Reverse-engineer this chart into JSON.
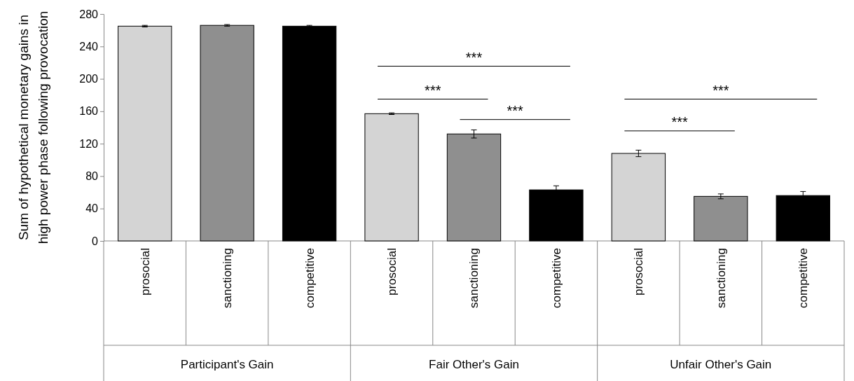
{
  "chart_data": {
    "type": "bar",
    "ylabel": "Sum  of hypothetical monetary  gains in high power phase following provocation",
    "categories": [
      "prosocial",
      "sanctioning",
      "competitive",
      "prosocial",
      "sanctioning",
      "competitive",
      "prosocial",
      "sanctioning",
      "competitive"
    ],
    "values": [
      265,
      266,
      265,
      157,
      132,
      63,
      108,
      55,
      56
    ],
    "colors": [
      "#d4d4d4",
      "#8f8f8f",
      "#000000",
      "#d4d4d4",
      "#8f8f8f",
      "#000000",
      "#d4d4d4",
      "#8f8f8f",
      "#000000"
    ],
    "errors": [
      1,
      1,
      1,
      1,
      5,
      5,
      4,
      3,
      5
    ],
    "ylim": [
      0,
      280
    ],
    "yticks": [
      0,
      40,
      80,
      120,
      160,
      200,
      240,
      280
    ],
    "grid": false,
    "annotations": [
      "Participant's Gain",
      "Fair Other's Gain",
      "Unfair Other's Gain",
      "***",
      "***",
      "***",
      "***",
      "***"
    ]
  }
}
